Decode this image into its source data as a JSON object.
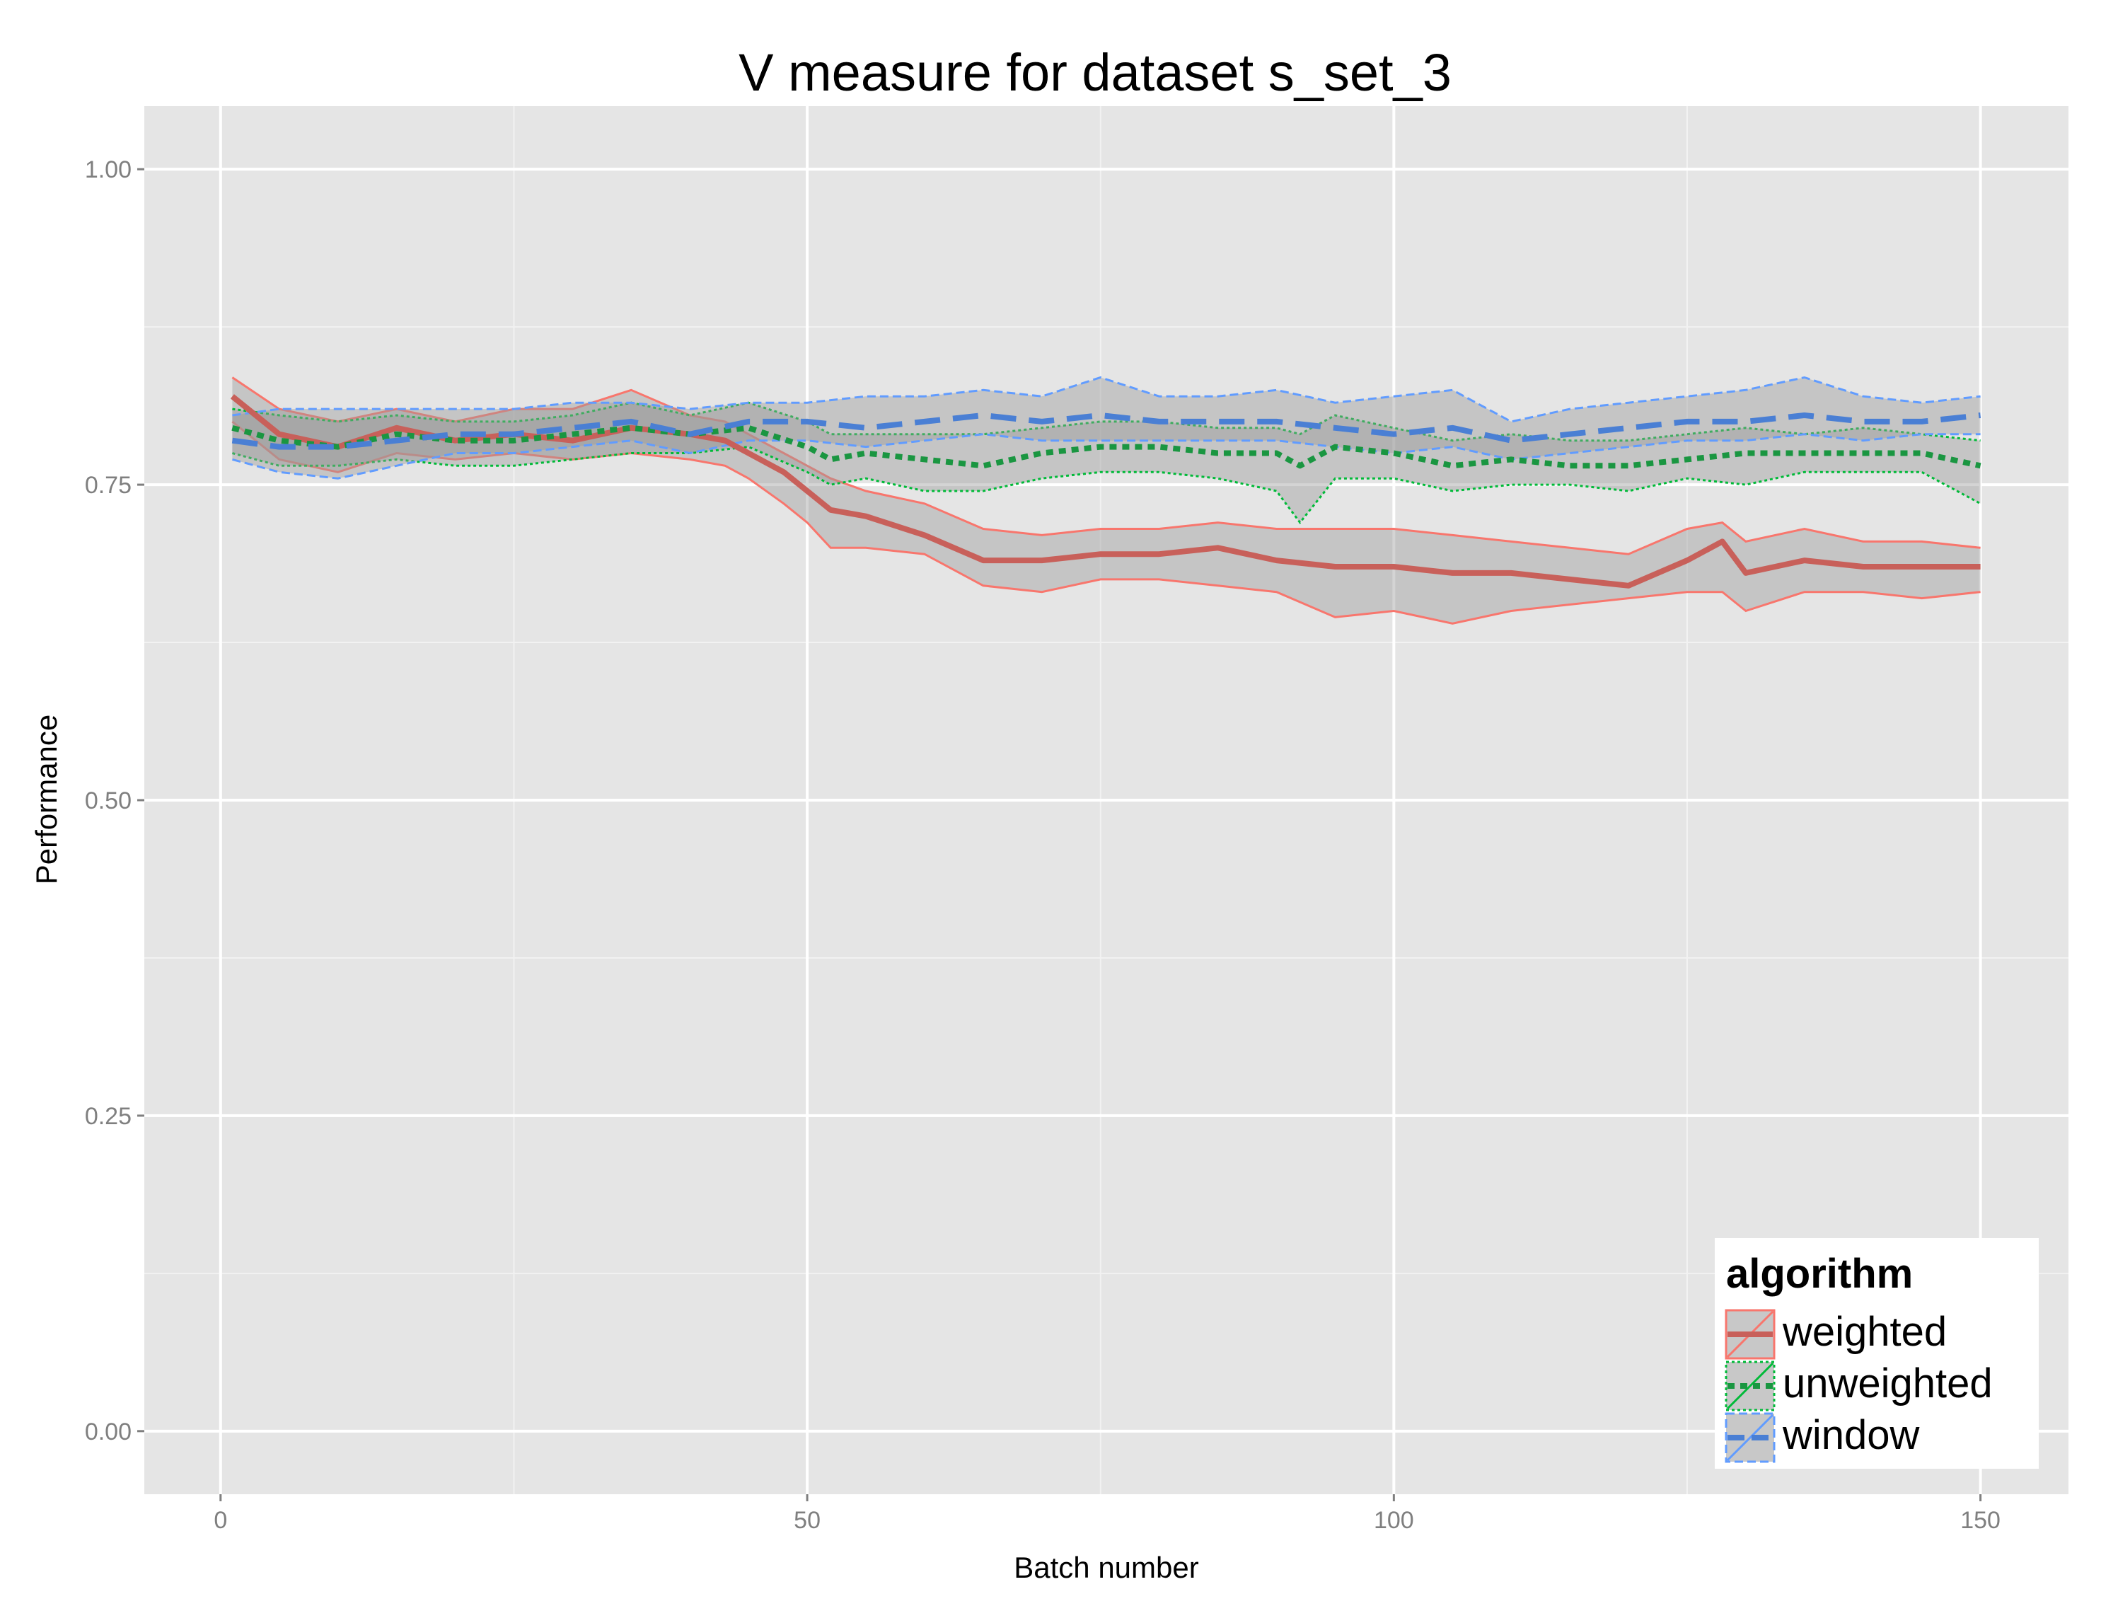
{
  "chart_data": {
    "type": "line",
    "title": "V measure for dataset s_set_3",
    "xlabel": "Batch number",
    "ylabel": "Performance",
    "xlim": [
      -6.5,
      157.5
    ],
    "ylim": [
      -0.05,
      1.05
    ],
    "x_ticks": [
      0,
      50,
      100,
      150
    ],
    "x_tick_labels": [
      "0",
      "50",
      "100",
      "150"
    ],
    "y_ticks": [
      0.0,
      0.25,
      0.5,
      0.75,
      1.0
    ],
    "y_tick_labels": [
      "0.00",
      "0.25",
      "0.50",
      "0.75",
      "1.00"
    ],
    "grid": true,
    "legend": {
      "title": "algorithm",
      "position": "bottom-right"
    },
    "series": [
      {
        "name": "weighted",
        "color": "#c8605a",
        "band_color": "#f8766d",
        "linestyle": "solid",
        "points": [
          [
            1,
            0.82
          ],
          [
            5,
            0.79
          ],
          [
            10,
            0.78
          ],
          [
            15,
            0.795
          ],
          [
            20,
            0.785
          ],
          [
            25,
            0.79
          ],
          [
            30,
            0.785
          ],
          [
            35,
            0.795
          ],
          [
            40,
            0.79
          ],
          [
            43,
            0.785
          ],
          [
            45,
            0.775
          ],
          [
            48,
            0.76
          ],
          [
            50,
            0.745
          ],
          [
            52,
            0.73
          ],
          [
            55,
            0.725
          ],
          [
            60,
            0.71
          ],
          [
            65,
            0.69
          ],
          [
            70,
            0.69
          ],
          [
            75,
            0.695
          ],
          [
            80,
            0.695
          ],
          [
            85,
            0.7
          ],
          [
            90,
            0.69
          ],
          [
            95,
            0.685
          ],
          [
            100,
            0.685
          ],
          [
            105,
            0.68
          ],
          [
            110,
            0.68
          ],
          [
            115,
            0.675
          ],
          [
            120,
            0.67
          ],
          [
            125,
            0.69
          ],
          [
            128,
            0.705
          ],
          [
            130,
            0.68
          ],
          [
            135,
            0.69
          ],
          [
            140,
            0.685
          ],
          [
            145,
            0.685
          ],
          [
            150,
            0.685
          ]
        ],
        "lower": [
          [
            1,
            0.8
          ],
          [
            5,
            0.77
          ],
          [
            10,
            0.76
          ],
          [
            15,
            0.775
          ],
          [
            20,
            0.77
          ],
          [
            25,
            0.775
          ],
          [
            30,
            0.77
          ],
          [
            35,
            0.775
          ],
          [
            40,
            0.77
          ],
          [
            43,
            0.765
          ],
          [
            45,
            0.755
          ],
          [
            48,
            0.735
          ],
          [
            50,
            0.72
          ],
          [
            52,
            0.7
          ],
          [
            55,
            0.7
          ],
          [
            60,
            0.695
          ],
          [
            65,
            0.67
          ],
          [
            70,
            0.665
          ],
          [
            75,
            0.675
          ],
          [
            80,
            0.675
          ],
          [
            85,
            0.67
          ],
          [
            90,
            0.665
          ],
          [
            95,
            0.645
          ],
          [
            100,
            0.65
          ],
          [
            105,
            0.64
          ],
          [
            110,
            0.65
          ],
          [
            115,
            0.655
          ],
          [
            120,
            0.66
          ],
          [
            125,
            0.665
          ],
          [
            128,
            0.665
          ],
          [
            130,
            0.65
          ],
          [
            135,
            0.665
          ],
          [
            140,
            0.665
          ],
          [
            145,
            0.66
          ],
          [
            150,
            0.665
          ]
        ],
        "upper": [
          [
            1,
            0.835
          ],
          [
            5,
            0.81
          ],
          [
            10,
            0.8
          ],
          [
            15,
            0.81
          ],
          [
            20,
            0.8
          ],
          [
            25,
            0.81
          ],
          [
            30,
            0.81
          ],
          [
            35,
            0.825
          ],
          [
            40,
            0.805
          ],
          [
            43,
            0.8
          ],
          [
            45,
            0.79
          ],
          [
            48,
            0.775
          ],
          [
            50,
            0.765
          ],
          [
            52,
            0.755
          ],
          [
            55,
            0.745
          ],
          [
            60,
            0.735
          ],
          [
            65,
            0.715
          ],
          [
            70,
            0.71
          ],
          [
            75,
            0.715
          ],
          [
            80,
            0.715
          ],
          [
            85,
            0.72
          ],
          [
            90,
            0.715
          ],
          [
            95,
            0.715
          ],
          [
            100,
            0.715
          ],
          [
            105,
            0.71
          ],
          [
            110,
            0.705
          ],
          [
            115,
            0.7
          ],
          [
            120,
            0.695
          ],
          [
            125,
            0.715
          ],
          [
            128,
            0.72
          ],
          [
            130,
            0.705
          ],
          [
            135,
            0.715
          ],
          [
            140,
            0.705
          ],
          [
            145,
            0.705
          ],
          [
            150,
            0.7
          ]
        ]
      },
      {
        "name": "unweighted",
        "color": "#1a9641",
        "band_color": "#00ba38",
        "linestyle": "dotted",
        "points": [
          [
            1,
            0.795
          ],
          [
            5,
            0.785
          ],
          [
            10,
            0.78
          ],
          [
            15,
            0.79
          ],
          [
            20,
            0.785
          ],
          [
            25,
            0.785
          ],
          [
            30,
            0.79
          ],
          [
            35,
            0.795
          ],
          [
            40,
            0.79
          ],
          [
            45,
            0.795
          ],
          [
            50,
            0.78
          ],
          [
            52,
            0.77
          ],
          [
            55,
            0.775
          ],
          [
            60,
            0.77
          ],
          [
            65,
            0.765
          ],
          [
            70,
            0.775
          ],
          [
            75,
            0.78
          ],
          [
            80,
            0.78
          ],
          [
            85,
            0.775
          ],
          [
            90,
            0.775
          ],
          [
            92,
            0.765
          ],
          [
            95,
            0.78
          ],
          [
            100,
            0.775
          ],
          [
            105,
            0.765
          ],
          [
            110,
            0.77
          ],
          [
            115,
            0.765
          ],
          [
            120,
            0.765
          ],
          [
            125,
            0.77
          ],
          [
            130,
            0.775
          ],
          [
            135,
            0.775
          ],
          [
            140,
            0.775
          ],
          [
            145,
            0.775
          ],
          [
            150,
            0.765
          ]
        ],
        "lower": [
          [
            1,
            0.775
          ],
          [
            5,
            0.765
          ],
          [
            10,
            0.765
          ],
          [
            15,
            0.77
          ],
          [
            20,
            0.765
          ],
          [
            25,
            0.765
          ],
          [
            30,
            0.77
          ],
          [
            35,
            0.775
          ],
          [
            40,
            0.775
          ],
          [
            45,
            0.78
          ],
          [
            50,
            0.76
          ],
          [
            52,
            0.75
          ],
          [
            55,
            0.755
          ],
          [
            60,
            0.745
          ],
          [
            65,
            0.745
          ],
          [
            70,
            0.755
          ],
          [
            75,
            0.76
          ],
          [
            80,
            0.76
          ],
          [
            85,
            0.755
          ],
          [
            90,
            0.745
          ],
          [
            92,
            0.72
          ],
          [
            95,
            0.755
          ],
          [
            100,
            0.755
          ],
          [
            105,
            0.745
          ],
          [
            110,
            0.75
          ],
          [
            115,
            0.75
          ],
          [
            120,
            0.745
          ],
          [
            125,
            0.755
          ],
          [
            130,
            0.75
          ],
          [
            135,
            0.76
          ],
          [
            140,
            0.76
          ],
          [
            145,
            0.76
          ],
          [
            150,
            0.735
          ]
        ],
        "upper": [
          [
            1,
            0.81
          ],
          [
            5,
            0.805
          ],
          [
            10,
            0.8
          ],
          [
            15,
            0.805
          ],
          [
            20,
            0.8
          ],
          [
            25,
            0.8
          ],
          [
            30,
            0.805
          ],
          [
            35,
            0.815
          ],
          [
            40,
            0.805
          ],
          [
            45,
            0.815
          ],
          [
            50,
            0.8
          ],
          [
            52,
            0.79
          ],
          [
            55,
            0.79
          ],
          [
            60,
            0.79
          ],
          [
            65,
            0.79
          ],
          [
            70,
            0.795
          ],
          [
            75,
            0.8
          ],
          [
            80,
            0.8
          ],
          [
            85,
            0.795
          ],
          [
            90,
            0.795
          ],
          [
            92,
            0.79
          ],
          [
            95,
            0.805
          ],
          [
            100,
            0.795
          ],
          [
            105,
            0.785
          ],
          [
            110,
            0.79
          ],
          [
            115,
            0.785
          ],
          [
            120,
            0.785
          ],
          [
            125,
            0.79
          ],
          [
            130,
            0.795
          ],
          [
            135,
            0.79
          ],
          [
            140,
            0.795
          ],
          [
            145,
            0.79
          ],
          [
            150,
            0.785
          ]
        ]
      },
      {
        "name": "window",
        "color": "#4a7fd4",
        "band_color": "#619cff",
        "linestyle": "dashed",
        "points": [
          [
            1,
            0.785
          ],
          [
            5,
            0.78
          ],
          [
            10,
            0.78
          ],
          [
            15,
            0.785
          ],
          [
            20,
            0.79
          ],
          [
            25,
            0.79
          ],
          [
            30,
            0.795
          ],
          [
            35,
            0.8
          ],
          [
            40,
            0.79
          ],
          [
            45,
            0.8
          ],
          [
            50,
            0.8
          ],
          [
            55,
            0.795
          ],
          [
            60,
            0.8
          ],
          [
            65,
            0.805
          ],
          [
            70,
            0.8
          ],
          [
            75,
            0.805
          ],
          [
            80,
            0.8
          ],
          [
            85,
            0.8
          ],
          [
            90,
            0.8
          ],
          [
            95,
            0.795
          ],
          [
            100,
            0.79
          ],
          [
            105,
            0.795
          ],
          [
            110,
            0.785
          ],
          [
            115,
            0.79
          ],
          [
            120,
            0.795
          ],
          [
            125,
            0.8
          ],
          [
            130,
            0.8
          ],
          [
            135,
            0.805
          ],
          [
            140,
            0.8
          ],
          [
            145,
            0.8
          ],
          [
            150,
            0.805
          ]
        ],
        "lower": [
          [
            1,
            0.77
          ],
          [
            5,
            0.76
          ],
          [
            10,
            0.755
          ],
          [
            15,
            0.765
          ],
          [
            20,
            0.775
          ],
          [
            25,
            0.775
          ],
          [
            30,
            0.78
          ],
          [
            35,
            0.785
          ],
          [
            40,
            0.775
          ],
          [
            45,
            0.785
          ],
          [
            50,
            0.785
          ],
          [
            55,
            0.78
          ],
          [
            60,
            0.785
          ],
          [
            65,
            0.79
          ],
          [
            70,
            0.785
          ],
          [
            75,
            0.785
          ],
          [
            80,
            0.785
          ],
          [
            85,
            0.785
          ],
          [
            90,
            0.785
          ],
          [
            95,
            0.78
          ],
          [
            100,
            0.775
          ],
          [
            105,
            0.78
          ],
          [
            110,
            0.77
          ],
          [
            115,
            0.775
          ],
          [
            120,
            0.78
          ],
          [
            125,
            0.785
          ],
          [
            130,
            0.785
          ],
          [
            135,
            0.79
          ],
          [
            140,
            0.785
          ],
          [
            145,
            0.79
          ],
          [
            150,
            0.79
          ]
        ],
        "upper": [
          [
            1,
            0.805
          ],
          [
            5,
            0.81
          ],
          [
            10,
            0.81
          ],
          [
            15,
            0.81
          ],
          [
            20,
            0.81
          ],
          [
            25,
            0.81
          ],
          [
            30,
            0.815
          ],
          [
            35,
            0.815
          ],
          [
            40,
            0.81
          ],
          [
            45,
            0.815
          ],
          [
            50,
            0.815
          ],
          [
            55,
            0.82
          ],
          [
            60,
            0.82
          ],
          [
            65,
            0.825
          ],
          [
            70,
            0.82
          ],
          [
            75,
            0.835
          ],
          [
            80,
            0.82
          ],
          [
            85,
            0.82
          ],
          [
            90,
            0.825
          ],
          [
            95,
            0.815
          ],
          [
            100,
            0.82
          ],
          [
            105,
            0.825
          ],
          [
            110,
            0.8
          ],
          [
            115,
            0.81
          ],
          [
            120,
            0.815
          ],
          [
            125,
            0.82
          ],
          [
            130,
            0.825
          ],
          [
            135,
            0.835
          ],
          [
            140,
            0.82
          ],
          [
            145,
            0.815
          ],
          [
            150,
            0.82
          ]
        ]
      }
    ]
  }
}
